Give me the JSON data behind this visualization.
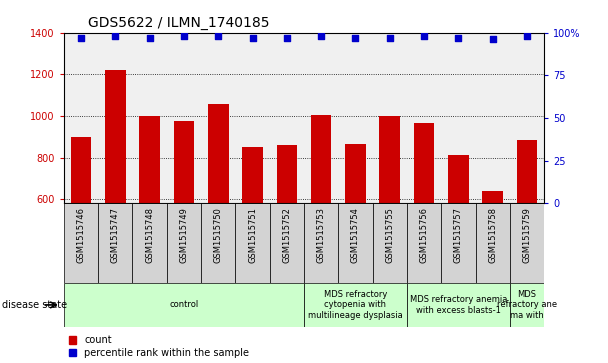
{
  "title": "GDS5622 / ILMN_1740185",
  "samples": [
    "GSM1515746",
    "GSM1515747",
    "GSM1515748",
    "GSM1515749",
    "GSM1515750",
    "GSM1515751",
    "GSM1515752",
    "GSM1515753",
    "GSM1515754",
    "GSM1515755",
    "GSM1515756",
    "GSM1515757",
    "GSM1515758",
    "GSM1515759"
  ],
  "counts": [
    900,
    1220,
    1000,
    975,
    1055,
    850,
    860,
    1005,
    865,
    998,
    965,
    810,
    640,
    885
  ],
  "percentiles": [
    97,
    98,
    97,
    98,
    98,
    97,
    97,
    98,
    97,
    97,
    98,
    97,
    96,
    98
  ],
  "ylim_left": [
    580,
    1400
  ],
  "ylim_right": [
    0,
    100
  ],
  "yticks_left": [
    600,
    800,
    1000,
    1200,
    1400
  ],
  "yticks_right": [
    0,
    25,
    50,
    75,
    100
  ],
  "bar_color": "#cc0000",
  "dot_color": "#0000cc",
  "plot_bg": "#f0f0f0",
  "sample_bg": "#d3d3d3",
  "disease_groups": [
    {
      "label": "control",
      "start": 0,
      "end": 7
    },
    {
      "label": "MDS refractory\ncytopenia with\nmultilineage dysplasia",
      "start": 7,
      "end": 10
    },
    {
      "label": "MDS refractory anemia\nwith excess blasts-1",
      "start": 10,
      "end": 13
    },
    {
      "label": "MDS\nrefractory ane\nma with",
      "start": 13,
      "end": 14
    }
  ],
  "disease_color": "#ccffcc",
  "title_fontsize": 10,
  "tick_fontsize": 7,
  "sample_fontsize": 6,
  "disease_fontsize": 6,
  "legend_fontsize": 7
}
